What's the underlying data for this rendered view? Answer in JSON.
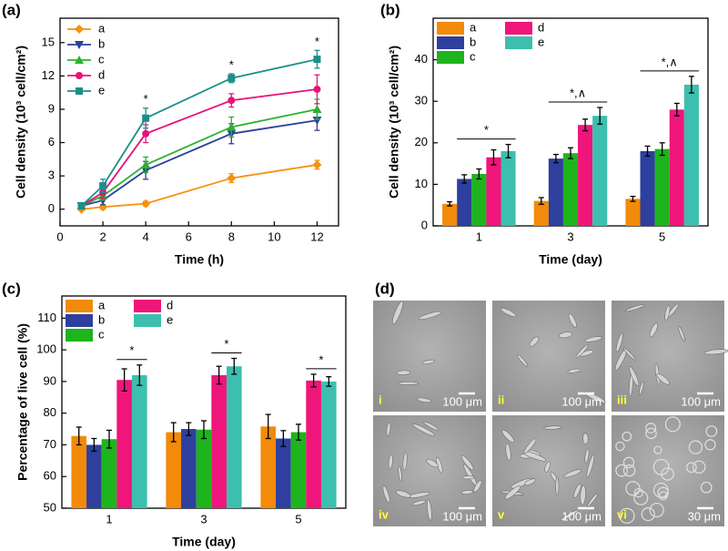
{
  "chart_data": [
    {
      "type": "line",
      "title": "(a)",
      "x_label": "Time (h)",
      "y_label": "Cell density (10³ cell/cm²)",
      "x": [
        1,
        2,
        4,
        8,
        12
      ],
      "xlim": [
        0,
        13
      ],
      "xticks": [
        0,
        2,
        4,
        6,
        8,
        10,
        12
      ],
      "ylim": [
        -1.5,
        17.2
      ],
      "yticks": [
        0,
        3,
        6,
        9,
        12,
        15
      ],
      "legend": "upper left",
      "series": [
        {
          "name": "a",
          "color": "#f5920f",
          "marker": "diamond",
          "values": [
            0,
            0.2,
            0.5,
            2.8,
            4.0
          ],
          "errors": [
            0.1,
            0.2,
            0.2,
            0.4,
            0.4
          ]
        },
        {
          "name": "b",
          "color": "#2b3f9a",
          "marker": "triangle-down",
          "values": [
            0.3,
            0.8,
            3.5,
            6.8,
            8.0
          ],
          "errors": [
            0.2,
            0.4,
            0.8,
            0.9,
            0.9
          ]
        },
        {
          "name": "c",
          "color": "#2db22d",
          "marker": "triangle-up",
          "values": [
            0.3,
            1.2,
            4.0,
            7.4,
            9.0
          ],
          "errors": [
            0.2,
            0.4,
            0.7,
            0.9,
            0.9
          ]
        },
        {
          "name": "d",
          "color": "#e8127c",
          "marker": "circle",
          "values": [
            0.3,
            1.5,
            6.8,
            9.8,
            10.8
          ],
          "errors": [
            0.2,
            0.5,
            0.8,
            0.6,
            1.3
          ]
        },
        {
          "name": "e",
          "color": "#1b8f8a",
          "marker": "square",
          "values": [
            0.3,
            2.1,
            8.2,
            11.8,
            13.5
          ],
          "errors": [
            0.2,
            0.6,
            0.9,
            0.4,
            0.8
          ]
        }
      ],
      "annotations": [
        {
          "text": "*",
          "x": 4
        },
        {
          "text": "*",
          "x": 8
        },
        {
          "text": "*",
          "x": 12
        }
      ]
    },
    {
      "type": "bar",
      "title": "(b)",
      "x_label": "Time (day)",
      "y_label": "Cell density (10³ cell/cm²)",
      "categories": [
        "1",
        "3",
        "5"
      ],
      "ylim": [
        0,
        50
      ],
      "yticks": [
        0,
        10,
        20,
        30,
        40
      ],
      "legend": "upper left",
      "series": [
        {
          "name": "a",
          "color": "#f28a0a",
          "values": [
            5.3,
            6.0,
            6.5
          ],
          "errors": [
            0.5,
            0.8,
            0.6
          ]
        },
        {
          "name": "b",
          "color": "#2e3f9e",
          "values": [
            11.3,
            16.2,
            18.0
          ],
          "errors": [
            1.0,
            1.0,
            1.2
          ]
        },
        {
          "name": "c",
          "color": "#1db41d",
          "values": [
            12.5,
            17.5,
            18.5
          ],
          "errors": [
            1.2,
            1.3,
            1.5
          ]
        },
        {
          "name": "d",
          "color": "#f0157a",
          "values": [
            16.5,
            24.3,
            28.0
          ],
          "errors": [
            1.8,
            1.4,
            1.5
          ]
        },
        {
          "name": "e",
          "color": "#3cbfae",
          "values": [
            18.0,
            26.5,
            34.0
          ],
          "errors": [
            1.6,
            2.0,
            2.0
          ]
        }
      ],
      "annotations": [
        {
          "text": "*",
          "category": "1"
        },
        {
          "text": "*,∧",
          "category": "3"
        },
        {
          "text": "*,∧",
          "category": "5"
        }
      ]
    },
    {
      "type": "bar",
      "title": "(c)",
      "x_label": "Time (day)",
      "y_label": "Percentage of live cell (%)",
      "categories": [
        "1",
        "3",
        "5"
      ],
      "ylim": [
        50,
        117
      ],
      "yticks": [
        50,
        60,
        70,
        80,
        90,
        100,
        110
      ],
      "legend": "upper left",
      "series": [
        {
          "name": "a",
          "color": "#f28a0a",
          "values": [
            72.8,
            74.0,
            75.8
          ],
          "errors": [
            2.8,
            3.0,
            3.8
          ]
        },
        {
          "name": "b",
          "color": "#2e3f9e",
          "values": [
            70.0,
            75.0,
            72.0
          ],
          "errors": [
            2.0,
            2.0,
            2.5
          ]
        },
        {
          "name": "c",
          "color": "#1db41d",
          "values": [
            71.8,
            74.8,
            74.0
          ],
          "errors": [
            2.8,
            2.8,
            2.5
          ]
        },
        {
          "name": "d",
          "color": "#f0157a",
          "values": [
            90.5,
            92.0,
            90.3
          ],
          "errors": [
            3.5,
            2.8,
            2.0
          ]
        },
        {
          "name": "e",
          "color": "#3cbfae",
          "values": [
            92.0,
            94.8,
            90.0
          ],
          "errors": [
            3.2,
            2.5,
            1.5
          ]
        }
      ],
      "annotations": [
        {
          "text": "*",
          "category": "1"
        },
        {
          "text": "*",
          "category": "3"
        },
        {
          "text": "*",
          "category": "5"
        }
      ]
    }
  ],
  "micrographs": {
    "title": "(d)",
    "images": [
      {
        "label": "i",
        "scale": "100 μm"
      },
      {
        "label": "ii",
        "scale": "100 μm"
      },
      {
        "label": "iii",
        "scale": "100 μm"
      },
      {
        "label": "iv",
        "scale": "100 μm"
      },
      {
        "label": "v",
        "scale": "100 μm"
      },
      {
        "label": "vi",
        "scale": "30 μm"
      }
    ]
  }
}
